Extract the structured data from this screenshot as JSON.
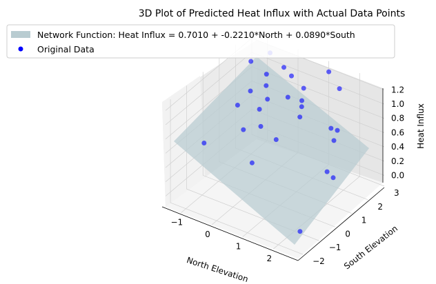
{
  "chart_data": {
    "type": "scatter",
    "projection": "3d",
    "title": "3D Plot of Predicted Heat Influx with Actual Data Points",
    "xlabel": "North Elevation",
    "ylabel": "South Elevation",
    "zlabel": "Heat Influx",
    "xlim": [
      -1.5,
      2.8
    ],
    "ylim": [
      -2.3,
      3.0
    ],
    "zlim": [
      -0.15,
      1.3
    ],
    "x_ticks": [
      "−1",
      "0",
      "1",
      "2"
    ],
    "y_ticks": [
      "−2",
      "−1",
      "0",
      "1",
      "2",
      "3"
    ],
    "z_ticks": [
      "0.0",
      "0.2",
      "0.4",
      "0.6",
      "0.8",
      "1.0",
      "1.2"
    ],
    "grid": true,
    "legend_position": "upper-left",
    "legend": [
      {
        "label": "Network Function: Heat Influx = 0.7010 + -0.2210*North + 0.0890*South",
        "color": "#b9ccd1",
        "kind": "patch"
      },
      {
        "label": "Original Data",
        "color": "#0000ff",
        "kind": "marker"
      }
    ],
    "surface": {
      "label": "Network Function: Heat Influx = 0.7010 + -0.2210*North + 0.0890*South",
      "intercept": 0.701,
      "coef_north": -0.221,
      "coef_south": 0.089,
      "color": "#b9ccd1",
      "opacity": 0.75
    },
    "series": [
      {
        "name": "Original Data",
        "color": "#0000ff",
        "points": [
          {
            "north": 1.0,
            "south": 3.0,
            "z": 1.15
          },
          {
            "north": 2.0,
            "south": 1.0,
            "z": 0.3
          },
          {
            "north": 2.6,
            "south": -1.8,
            "z": 0.1
          },
          {
            "north": 1.7,
            "south": 2.2,
            "z": 0.6
          },
          {
            "north": 1.6,
            "south": 2.0,
            "z": 0.65
          },
          {
            "north": 1.8,
            "south": 1.8,
            "z": 0.55
          },
          {
            "north": 2.2,
            "south": 1.0,
            "z": 0.25
          },
          {
            "north": 1.4,
            "south": 2.9,
            "z": 1.0
          },
          {
            "north": 0.5,
            "south": 2.4,
            "z": 0.95
          },
          {
            "north": 0.6,
            "south": 2.1,
            "z": 0.85
          },
          {
            "north": 0.7,
            "south": 1.9,
            "z": 0.82
          },
          {
            "north": 0.8,
            "south": 1.6,
            "z": 0.75
          },
          {
            "north": 0.0,
            "south": 2.6,
            "z": 1.0
          },
          {
            "north": -0.3,
            "south": 2.7,
            "z": 1.05
          },
          {
            "north": 0.2,
            "south": 2.0,
            "z": 0.85
          },
          {
            "north": -0.8,
            "south": 2.8,
            "z": 1.15
          },
          {
            "north": -0.6,
            "south": 2.2,
            "z": 1.0
          },
          {
            "north": -0.4,
            "south": 1.8,
            "z": 0.95
          },
          {
            "north": -0.2,
            "south": 1.5,
            "z": 0.85
          },
          {
            "north": -1.0,
            "south": 2.0,
            "z": 1.15
          },
          {
            "north": -0.7,
            "south": 1.4,
            "z": 0.9
          },
          {
            "north": -0.3,
            "south": 1.2,
            "z": 0.75
          },
          {
            "north": -0.1,
            "south": 0.9,
            "z": 0.6
          },
          {
            "north": -0.8,
            "south": 0.8,
            "z": 0.8
          },
          {
            "north": -0.4,
            "south": 0.4,
            "z": 0.6
          },
          {
            "north": 0.2,
            "south": -0.2,
            "z": 0.35
          },
          {
            "north": -1.2,
            "south": -0.5,
            "z": 0.45
          },
          {
            "north": 0.4,
            "south": 0.9,
            "z": 0.5
          }
        ]
      }
    ]
  }
}
